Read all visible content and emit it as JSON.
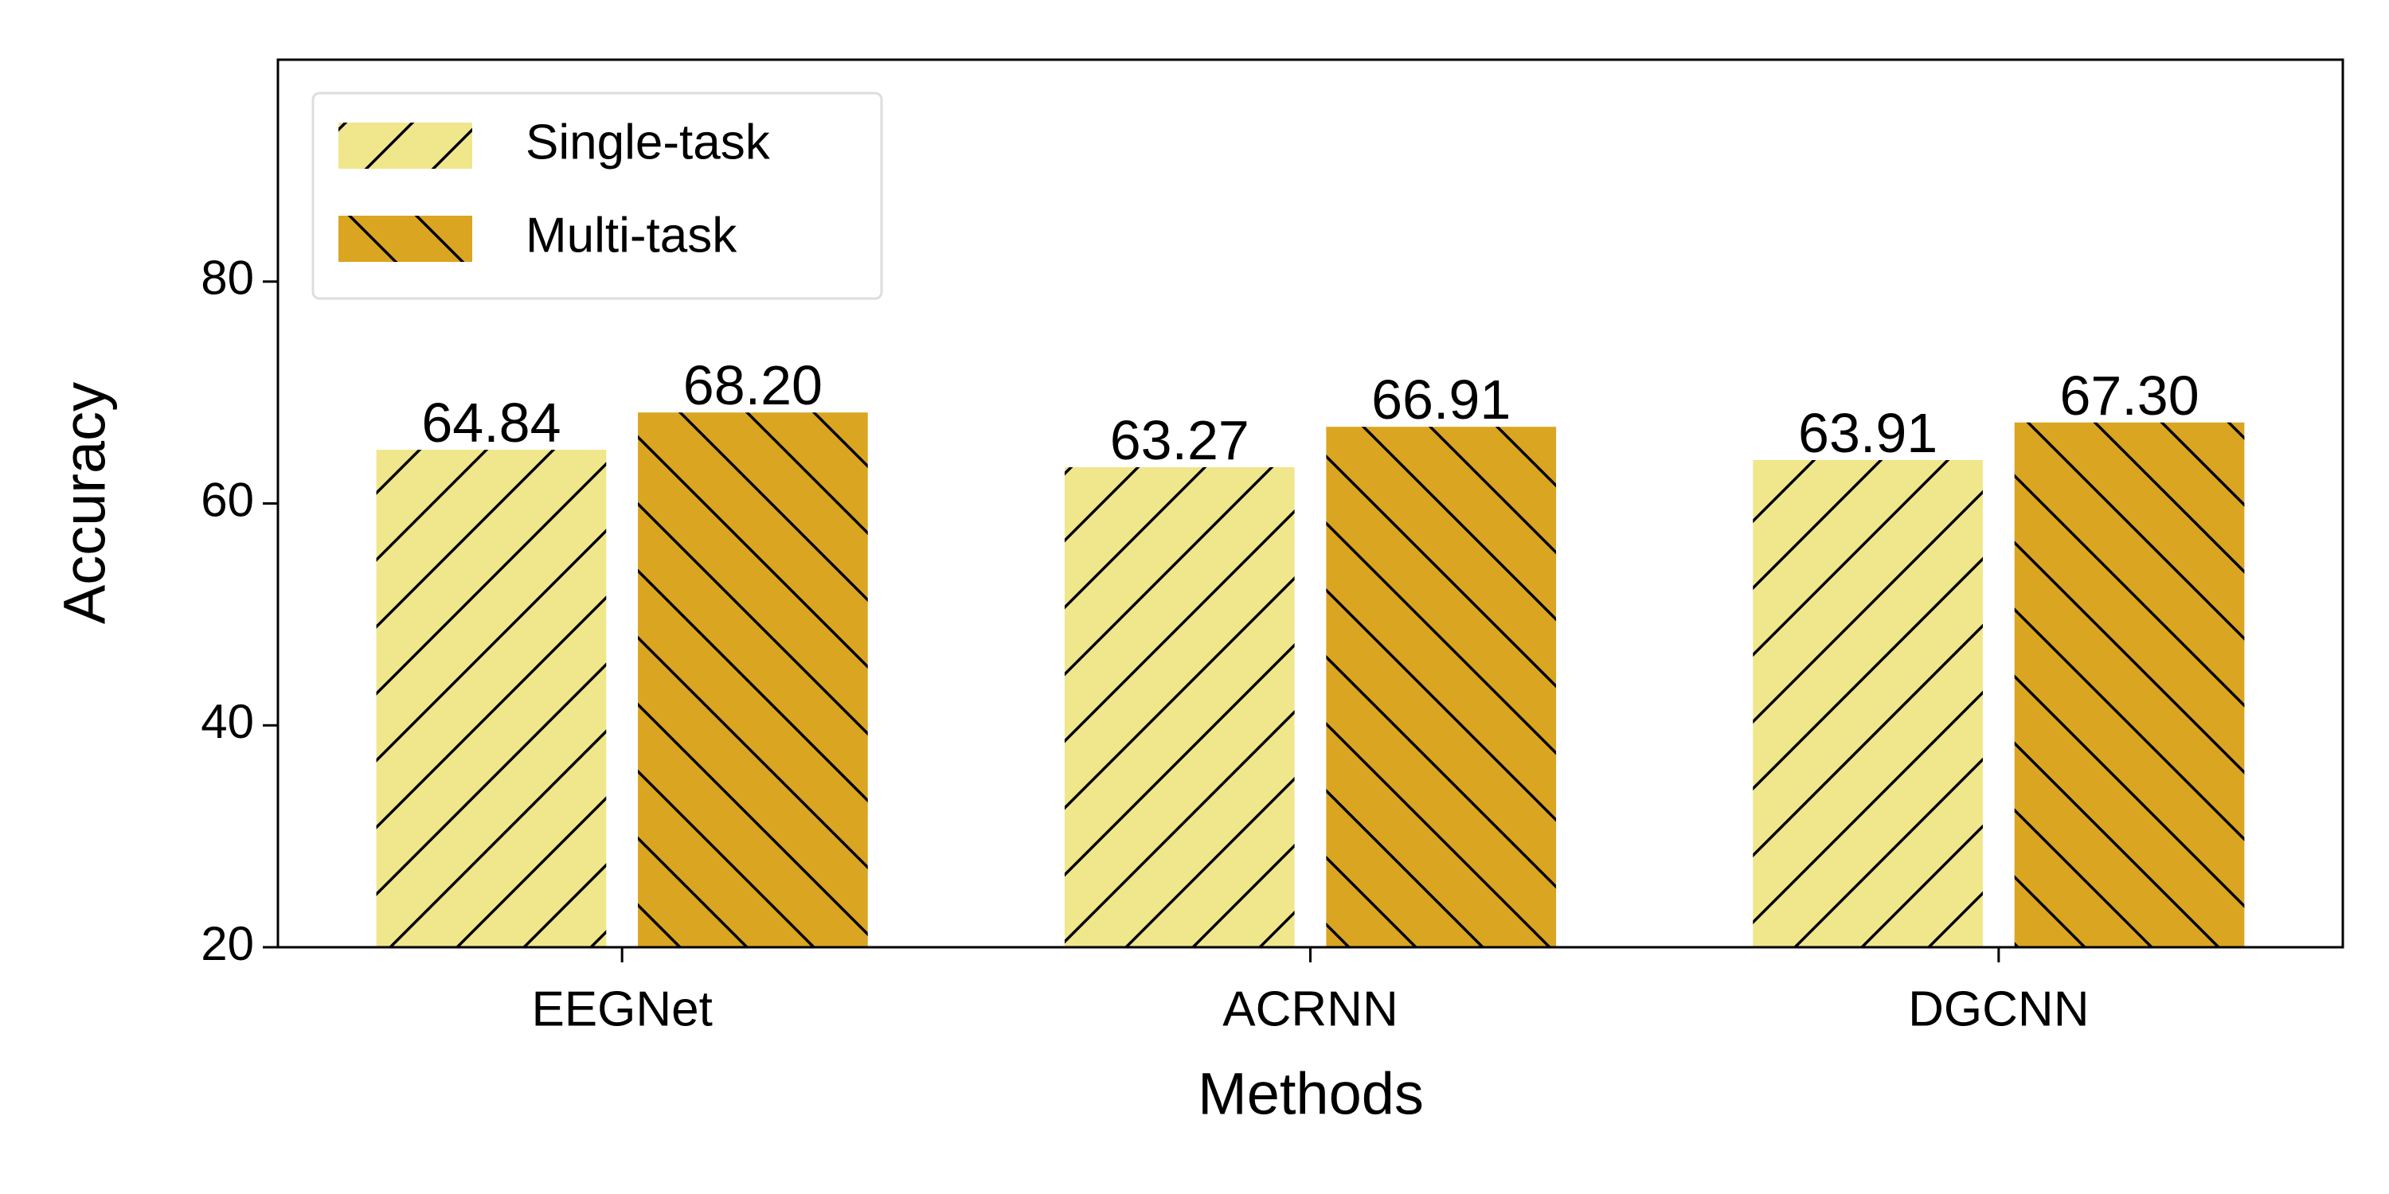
{
  "chart_data": {
    "type": "bar",
    "xlabel": "Methods",
    "ylabel": "Accuracy",
    "categories": [
      "EEGNet",
      "ACRNN",
      "DGCNN"
    ],
    "series": [
      {
        "name": "Single-task",
        "color": "#f0e68c",
        "hatch": "/",
        "values": [
          64.84,
          63.27,
          63.91
        ],
        "value_labels": [
          "64.84",
          "63.27",
          "63.91"
        ]
      },
      {
        "name": "Multi-task",
        "color": "#daa520",
        "hatch": "\\",
        "values": [
          68.2,
          66.91,
          67.3
        ],
        "value_labels": [
          "68.20",
          "66.91",
          "67.30"
        ]
      }
    ],
    "ylim": [
      20,
      100
    ],
    "yticks": [
      20,
      40,
      60,
      80
    ],
    "legend": "upper left"
  }
}
